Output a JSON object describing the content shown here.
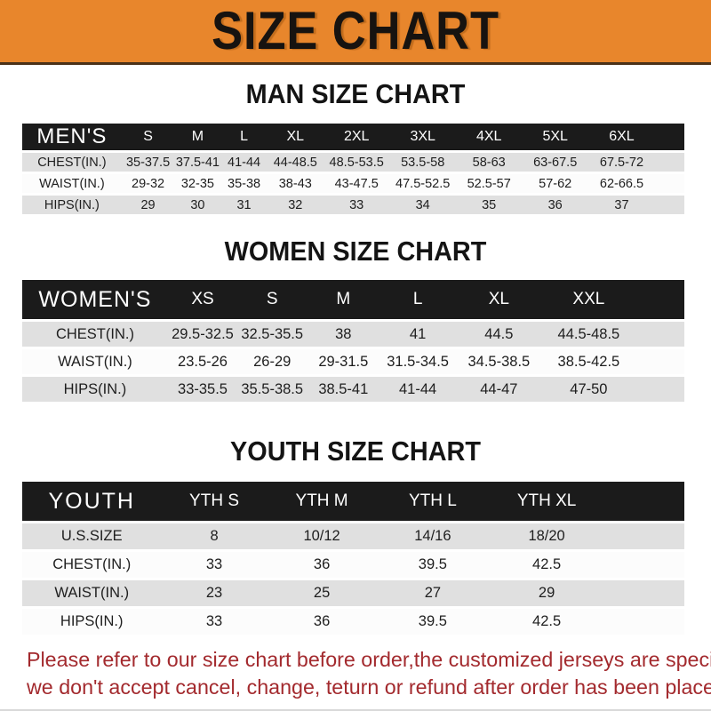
{
  "banner": {
    "title": "SIZE CHART"
  },
  "colors": {
    "accent_orange": "#E8862C",
    "bar_black": "#1B1B1B",
    "row_gray": "#E0E0E0",
    "notice_red": "#A32A2E"
  },
  "sections": [
    {
      "heading": "MAN SIZE CHART",
      "table": {
        "label": "MEN'S",
        "columns": [
          "S",
          "M",
          "L",
          "XL",
          "2XL",
          "3XL",
          "4XL",
          "5XL",
          "6XL"
        ],
        "rows": [
          {
            "label": "CHEST(IN.)",
            "values": [
              "35-37.5",
              "37.5-41",
              "41-44",
              "44-48.5",
              "48.5-53.5",
              "53.5-58",
              "58-63",
              "63-67.5",
              "67.5-72"
            ]
          },
          {
            "label": "WAIST(IN.)",
            "values": [
              "29-32",
              "32-35",
              "35-38",
              "38-43",
              "43-47.5",
              "47.5-52.5",
              "52.5-57",
              "57-62",
              "62-66.5"
            ]
          },
          {
            "label": "HIPS(IN.)",
            "values": [
              "29",
              "30",
              "31",
              "32",
              "33",
              "34",
              "35",
              "36",
              "37"
            ]
          }
        ]
      }
    },
    {
      "heading": "WOMEN SIZE CHART",
      "table": {
        "label": "WOMEN'S",
        "columns": [
          "XS",
          "S",
          "M",
          "L",
          "XL",
          "XXL"
        ],
        "rows": [
          {
            "label": "CHEST(IN.)",
            "values": [
              "29.5-32.5",
              "32.5-35.5",
              "38",
              "41",
              "44.5",
              "44.5-48.5"
            ]
          },
          {
            "label": "WAIST(IN.)",
            "values": [
              "23.5-26",
              "26-29",
              "29-31.5",
              "31.5-34.5",
              "34.5-38.5",
              "38.5-42.5"
            ]
          },
          {
            "label": "HIPS(IN.)",
            "values": [
              "33-35.5",
              "35.5-38.5",
              "38.5-41",
              "41-44",
              "44-47",
              "47-50"
            ]
          }
        ]
      }
    },
    {
      "heading": "YOUTH SIZE CHART",
      "table": {
        "label": "YOUTH",
        "columns": [
          "YTH S",
          "YTH M",
          "YTH L",
          "YTH XL"
        ],
        "rows": [
          {
            "label": "U.S.SIZE",
            "values": [
              "8",
              "10/12",
              "14/16",
              "18/20"
            ]
          },
          {
            "label": "CHEST(IN.)",
            "values": [
              "33",
              "36",
              "39.5",
              "42.5"
            ]
          },
          {
            "label": "WAIST(IN.)",
            "values": [
              "23",
              "25",
              "27",
              "29"
            ]
          },
          {
            "label": "HIPS(IN.)",
            "values": [
              "33",
              "36",
              "39.5",
              "42.5"
            ]
          }
        ]
      }
    }
  ],
  "footer": {
    "lines": [
      "Please refer to our size chart before order,the customized jerseys are special products,",
      "we don't accept cancel, change, teturn or refund after order has been placed!"
    ]
  }
}
